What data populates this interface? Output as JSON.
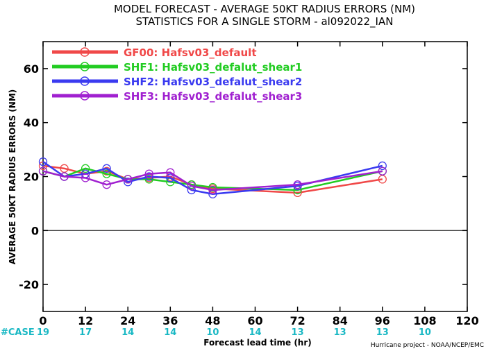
{
  "chart_data": {
    "type": "line",
    "title": "MODEL FORECAST - AVERAGE 50KT RADIUS ERRORS (NM)",
    "subtitle": "STATISTICS FOR A SINGLE STORM - al092022_IAN",
    "xlabel": "Forecast lead time (hr)",
    "ylabel": "AVERAGE 50KT RADIUS ERRORS (NM)",
    "xlim": [
      0,
      120
    ],
    "ylim": [
      -30,
      70
    ],
    "xticks": [
      0,
      12,
      24,
      36,
      48,
      60,
      72,
      84,
      96,
      108,
      120
    ],
    "yticks": [
      -20,
      0,
      20,
      40,
      60
    ],
    "zero_line": true,
    "legend_position": "top-left",
    "series": [
      {
        "name": "GF00: Hafsv03_default",
        "color": "#f04848",
        "x": [
          0,
          6,
          12,
          18,
          24,
          30,
          36,
          42,
          48,
          72,
          96
        ],
        "y": [
          24,
          23,
          21,
          22,
          19,
          19.5,
          20,
          17,
          15.5,
          14,
          19
        ]
      },
      {
        "name": "SHF1: Hafsv03_defalut_shear1",
        "color": "#22cc22",
        "x": [
          0,
          6,
          12,
          18,
          24,
          30,
          36,
          42,
          48,
          72,
          96
        ],
        "y": [
          22,
          20,
          23,
          21,
          19,
          19,
          18,
          17,
          16,
          15,
          22
        ]
      },
      {
        "name": "SHF2: Hafsv03_defalut_shear2",
        "color": "#3a3af0",
        "x": [
          0,
          6,
          12,
          18,
          24,
          30,
          36,
          42,
          48,
          72,
          96
        ],
        "y": [
          25.5,
          20,
          21,
          23,
          18,
          20,
          19.5,
          15,
          13.5,
          16.5,
          24
        ]
      },
      {
        "name": "SHF3: Hafsv03_defalut_shear3",
        "color": "#a020d0",
        "x": [
          0,
          6,
          12,
          18,
          24,
          30,
          36,
          42,
          48,
          72,
          96
        ],
        "y": [
          22,
          20,
          19.5,
          17,
          19,
          21,
          21.5,
          16.5,
          15,
          17,
          22
        ]
      }
    ],
    "case_label": "#CASE",
    "case_counts": [
      {
        "x": 0,
        "n": "19"
      },
      {
        "x": 12,
        "n": "17"
      },
      {
        "x": 24,
        "n": "14"
      },
      {
        "x": 36,
        "n": "14"
      },
      {
        "x": 48,
        "n": "10"
      },
      {
        "x": 60,
        "n": "14"
      },
      {
        "x": 72,
        "n": "13"
      },
      {
        "x": 84,
        "n": "13"
      },
      {
        "x": 96,
        "n": "13"
      },
      {
        "x": 108,
        "n": "10"
      }
    ],
    "credit": "Hurricane project - NOAA/NCEP/EMC"
  }
}
